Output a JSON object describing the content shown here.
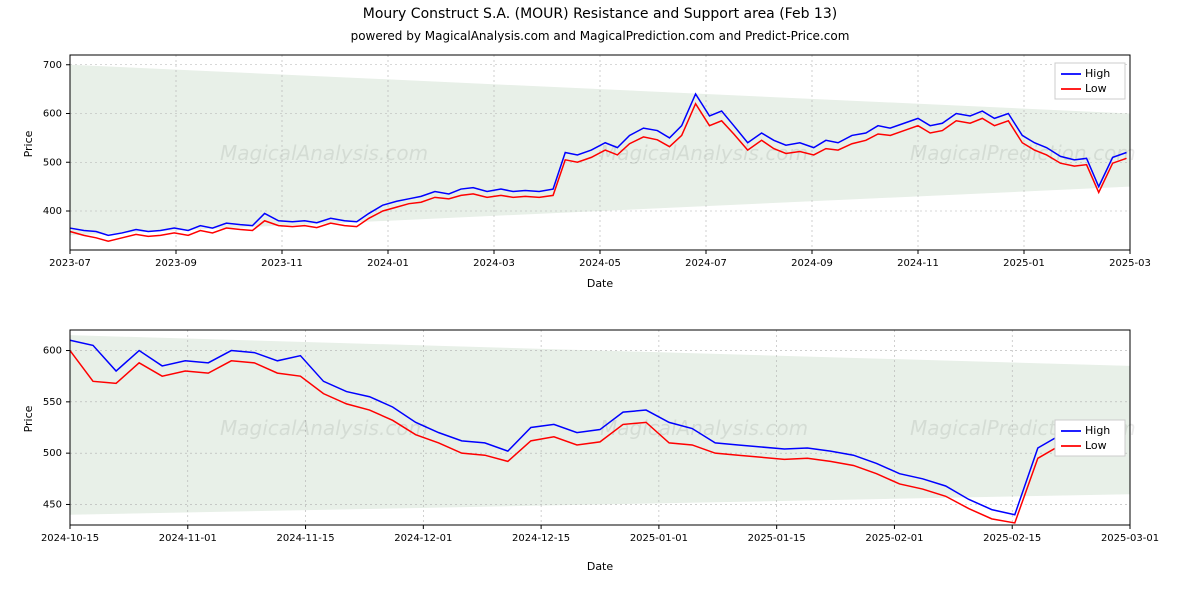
{
  "title": "Moury Construct S.A. (MOUR) Resistance and Support area (Feb 13)",
  "subtitle": "powered by MagicalAnalysis.com and MagicalPrediction.com and Predict-Price.com",
  "watermark_texts": [
    "MagicalAnalysis.com",
    "MagicalAnalysis.com",
    "MagicalPrediction.com"
  ],
  "legend": {
    "items": [
      {
        "label": "High",
        "color": "#0000ff"
      },
      {
        "label": "Low",
        "color": "#ff0000"
      }
    ]
  },
  "colors": {
    "high_line": "#0000ff",
    "low_line": "#ff0000",
    "fill_area": "#e8f0e8",
    "grid": "#b0b0b0",
    "border": "#000000",
    "background": "#ffffff",
    "text": "#000000"
  },
  "chart_top": {
    "xlabel": "Date",
    "ylabel": "Price",
    "ylim": [
      320,
      720
    ],
    "yticks": [
      400,
      500,
      600,
      700
    ],
    "xticks": [
      "2023-07",
      "2023-09",
      "2023-11",
      "2024-01",
      "2024-03",
      "2024-05",
      "2024-07",
      "2024-09",
      "2024-11",
      "2025-01",
      "2025-03"
    ],
    "x_range_days": [
      0,
      610
    ],
    "fill_polygon": [
      [
        0,
        700
      ],
      [
        610,
        600
      ],
      [
        610,
        450
      ],
      [
        0,
        350
      ]
    ],
    "high": [
      [
        0,
        365
      ],
      [
        8,
        360
      ],
      [
        15,
        358
      ],
      [
        22,
        350
      ],
      [
        30,
        355
      ],
      [
        38,
        362
      ],
      [
        45,
        358
      ],
      [
        52,
        360
      ],
      [
        60,
        365
      ],
      [
        68,
        360
      ],
      [
        75,
        370
      ],
      [
        82,
        365
      ],
      [
        90,
        375
      ],
      [
        98,
        372
      ],
      [
        105,
        370
      ],
      [
        112,
        395
      ],
      [
        120,
        380
      ],
      [
        128,
        378
      ],
      [
        135,
        380
      ],
      [
        142,
        376
      ],
      [
        150,
        385
      ],
      [
        158,
        380
      ],
      [
        165,
        378
      ],
      [
        172,
        395
      ],
      [
        180,
        412
      ],
      [
        188,
        420
      ],
      [
        195,
        425
      ],
      [
        202,
        430
      ],
      [
        210,
        440
      ],
      [
        218,
        435
      ],
      [
        225,
        445
      ],
      [
        232,
        448
      ],
      [
        240,
        440
      ],
      [
        248,
        445
      ],
      [
        255,
        440
      ],
      [
        262,
        442
      ],
      [
        270,
        440
      ],
      [
        278,
        445
      ],
      [
        285,
        520
      ],
      [
        292,
        515
      ],
      [
        300,
        525
      ],
      [
        308,
        540
      ],
      [
        315,
        530
      ],
      [
        322,
        555
      ],
      [
        330,
        570
      ],
      [
        338,
        565
      ],
      [
        345,
        550
      ],
      [
        352,
        575
      ],
      [
        360,
        640
      ],
      [
        368,
        595
      ],
      [
        375,
        605
      ],
      [
        382,
        575
      ],
      [
        390,
        540
      ],
      [
        398,
        560
      ],
      [
        405,
        545
      ],
      [
        412,
        535
      ],
      [
        420,
        540
      ],
      [
        428,
        530
      ],
      [
        435,
        545
      ],
      [
        442,
        540
      ],
      [
        450,
        555
      ],
      [
        458,
        560
      ],
      [
        465,
        575
      ],
      [
        472,
        570
      ],
      [
        480,
        580
      ],
      [
        488,
        590
      ],
      [
        495,
        575
      ],
      [
        502,
        580
      ],
      [
        510,
        600
      ],
      [
        518,
        595
      ],
      [
        525,
        605
      ],
      [
        532,
        590
      ],
      [
        540,
        600
      ],
      [
        548,
        555
      ],
      [
        555,
        540
      ],
      [
        562,
        530
      ],
      [
        570,
        512
      ],
      [
        578,
        505
      ],
      [
        585,
        508
      ],
      [
        592,
        450
      ],
      [
        600,
        510
      ],
      [
        608,
        520
      ]
    ],
    "low": [
      [
        0,
        358
      ],
      [
        8,
        350
      ],
      [
        15,
        345
      ],
      [
        22,
        338
      ],
      [
        30,
        345
      ],
      [
        38,
        352
      ],
      [
        45,
        348
      ],
      [
        52,
        350
      ],
      [
        60,
        355
      ],
      [
        68,
        350
      ],
      [
        75,
        360
      ],
      [
        82,
        355
      ],
      [
        90,
        365
      ],
      [
        98,
        362
      ],
      [
        105,
        360
      ],
      [
        112,
        380
      ],
      [
        120,
        370
      ],
      [
        128,
        368
      ],
      [
        135,
        370
      ],
      [
        142,
        366
      ],
      [
        150,
        375
      ],
      [
        158,
        370
      ],
      [
        165,
        368
      ],
      [
        172,
        385
      ],
      [
        180,
        400
      ],
      [
        188,
        408
      ],
      [
        195,
        415
      ],
      [
        202,
        418
      ],
      [
        210,
        428
      ],
      [
        218,
        425
      ],
      [
        225,
        432
      ],
      [
        232,
        435
      ],
      [
        240,
        428
      ],
      [
        248,
        432
      ],
      [
        255,
        428
      ],
      [
        262,
        430
      ],
      [
        270,
        428
      ],
      [
        278,
        432
      ],
      [
        285,
        505
      ],
      [
        292,
        500
      ],
      [
        300,
        510
      ],
      [
        308,
        525
      ],
      [
        315,
        515
      ],
      [
        322,
        538
      ],
      [
        330,
        552
      ],
      [
        338,
        546
      ],
      [
        345,
        532
      ],
      [
        352,
        555
      ],
      [
        360,
        620
      ],
      [
        368,
        575
      ],
      [
        375,
        585
      ],
      [
        382,
        558
      ],
      [
        390,
        525
      ],
      [
        398,
        545
      ],
      [
        405,
        528
      ],
      [
        412,
        518
      ],
      [
        420,
        522
      ],
      [
        428,
        515
      ],
      [
        435,
        528
      ],
      [
        442,
        525
      ],
      [
        450,
        538
      ],
      [
        458,
        545
      ],
      [
        465,
        558
      ],
      [
        472,
        555
      ],
      [
        480,
        565
      ],
      [
        488,
        575
      ],
      [
        495,
        560
      ],
      [
        502,
        565
      ],
      [
        510,
        585
      ],
      [
        518,
        580
      ],
      [
        525,
        590
      ],
      [
        532,
        575
      ],
      [
        540,
        585
      ],
      [
        548,
        540
      ],
      [
        555,
        525
      ],
      [
        562,
        515
      ],
      [
        570,
        498
      ],
      [
        578,
        492
      ],
      [
        585,
        495
      ],
      [
        592,
        438
      ],
      [
        600,
        498
      ],
      [
        608,
        508
      ]
    ]
  },
  "chart_bottom": {
    "xlabel": "Date",
    "ylabel": "Price",
    "ylim": [
      430,
      620
    ],
    "yticks": [
      450,
      500,
      550,
      600
    ],
    "xticks": [
      "2024-10-15",
      "2024-11-01",
      "2024-11-15",
      "2024-12-01",
      "2024-12-15",
      "2025-01-01",
      "2025-01-15",
      "2025-02-01",
      "2025-02-15",
      "2025-03-01"
    ],
    "x_range_days": [
      0,
      138
    ],
    "fill_polygon": [
      [
        0,
        615
      ],
      [
        138,
        585
      ],
      [
        138,
        460
      ],
      [
        0,
        440
      ]
    ],
    "high": [
      [
        0,
        610
      ],
      [
        3,
        605
      ],
      [
        6,
        580
      ],
      [
        9,
        600
      ],
      [
        12,
        585
      ],
      [
        15,
        590
      ],
      [
        18,
        588
      ],
      [
        21,
        600
      ],
      [
        24,
        598
      ],
      [
        27,
        590
      ],
      [
        30,
        595
      ],
      [
        33,
        570
      ],
      [
        36,
        560
      ],
      [
        39,
        555
      ],
      [
        42,
        545
      ],
      [
        45,
        530
      ],
      [
        48,
        520
      ],
      [
        51,
        512
      ],
      [
        54,
        510
      ],
      [
        57,
        502
      ],
      [
        60,
        525
      ],
      [
        63,
        528
      ],
      [
        66,
        520
      ],
      [
        69,
        523
      ],
      [
        72,
        540
      ],
      [
        75,
        542
      ],
      [
        78,
        530
      ],
      [
        81,
        524
      ],
      [
        84,
        510
      ],
      [
        87,
        508
      ],
      [
        90,
        506
      ],
      [
        93,
        504
      ],
      [
        96,
        505
      ],
      [
        99,
        502
      ],
      [
        102,
        498
      ],
      [
        105,
        490
      ],
      [
        108,
        480
      ],
      [
        111,
        475
      ],
      [
        114,
        468
      ],
      [
        117,
        455
      ],
      [
        120,
        445
      ],
      [
        123,
        440
      ],
      [
        126,
        505
      ],
      [
        129,
        518
      ],
      [
        132,
        522
      ]
    ],
    "low": [
      [
        0,
        600
      ],
      [
        3,
        570
      ],
      [
        6,
        568
      ],
      [
        9,
        588
      ],
      [
        12,
        575
      ],
      [
        15,
        580
      ],
      [
        18,
        578
      ],
      [
        21,
        590
      ],
      [
        24,
        588
      ],
      [
        27,
        578
      ],
      [
        30,
        575
      ],
      [
        33,
        558
      ],
      [
        36,
        548
      ],
      [
        39,
        542
      ],
      [
        42,
        532
      ],
      [
        45,
        518
      ],
      [
        48,
        510
      ],
      [
        51,
        500
      ],
      [
        54,
        498
      ],
      [
        57,
        492
      ],
      [
        60,
        512
      ],
      [
        63,
        516
      ],
      [
        66,
        508
      ],
      [
        69,
        511
      ],
      [
        72,
        528
      ],
      [
        75,
        530
      ],
      [
        78,
        510
      ],
      [
        81,
        508
      ],
      [
        84,
        500
      ],
      [
        87,
        498
      ],
      [
        90,
        496
      ],
      [
        93,
        494
      ],
      [
        96,
        495
      ],
      [
        99,
        492
      ],
      [
        102,
        488
      ],
      [
        105,
        480
      ],
      [
        108,
        470
      ],
      [
        111,
        465
      ],
      [
        114,
        458
      ],
      [
        117,
        446
      ],
      [
        120,
        436
      ],
      [
        123,
        432
      ],
      [
        126,
        495
      ],
      [
        129,
        508
      ],
      [
        132,
        512
      ]
    ]
  },
  "line_width": 1.5,
  "grid_dash": "2,3",
  "title_fontsize": 14,
  "subtitle_fontsize": 12,
  "axis_label_fontsize": 11,
  "tick_fontsize": 10
}
